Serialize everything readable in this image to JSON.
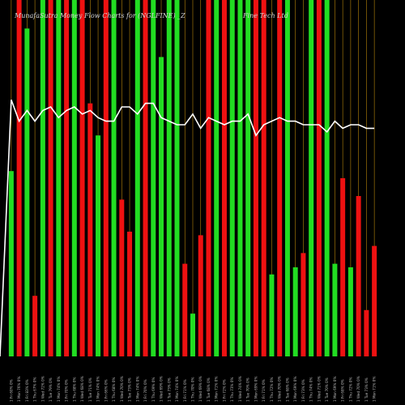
{
  "chart_data": {
    "type": "bar",
    "title": "MunafaSutra Money Flow Charts for (NGLFINE) _Z",
    "title_right": "Fine Tech Ltd",
    "colors": {
      "background": "#000000",
      "up": "#22dd22",
      "down": "#ee1111",
      "grid": "#b8860b",
      "line": "#ffffff"
    },
    "ylim": [
      0,
      100
    ],
    "bars": [
      {
        "value": 52,
        "color": "up"
      },
      {
        "value": 100,
        "color": "down"
      },
      {
        "value": 92,
        "color": "up"
      },
      {
        "value": 17,
        "color": "down"
      },
      {
        "value": 100,
        "color": "up"
      },
      {
        "value": 100,
        "color": "down"
      },
      {
        "value": 100,
        "color": "up"
      },
      {
        "value": 100,
        "color": "down"
      },
      {
        "value": 100,
        "color": "up"
      },
      {
        "value": 100,
        "color": "down"
      },
      {
        "value": 71,
        "color": "down"
      },
      {
        "value": 62,
        "color": "up"
      },
      {
        "value": 100,
        "color": "down"
      },
      {
        "value": 100,
        "color": "up"
      },
      {
        "value": 44,
        "color": "down"
      },
      {
        "value": 35,
        "color": "down"
      },
      {
        "value": 100,
        "color": "up"
      },
      {
        "value": 100,
        "color": "down"
      },
      {
        "value": 100,
        "color": "up"
      },
      {
        "value": 84,
        "color": "up"
      },
      {
        "value": 100,
        "color": "up"
      },
      {
        "value": 100,
        "color": "up"
      },
      {
        "value": 26,
        "color": "down"
      },
      {
        "value": 12,
        "color": "up"
      },
      {
        "value": 34,
        "color": "down"
      },
      {
        "value": 100,
        "color": "down"
      },
      {
        "value": 100,
        "color": "up"
      },
      {
        "value": 100,
        "color": "down"
      },
      {
        "value": 100,
        "color": "up"
      },
      {
        "value": 100,
        "color": "up"
      },
      {
        "value": 100,
        "color": "up"
      },
      {
        "value": 100,
        "color": "down"
      },
      {
        "value": 100,
        "color": "down"
      },
      {
        "value": 23,
        "color": "up"
      },
      {
        "value": 100,
        "color": "down"
      },
      {
        "value": 100,
        "color": "up"
      },
      {
        "value": 25,
        "color": "up"
      },
      {
        "value": 29,
        "color": "down"
      },
      {
        "value": 100,
        "color": "up"
      },
      {
        "value": 100,
        "color": "down"
      },
      {
        "value": 100,
        "color": "up"
      },
      {
        "value": 26,
        "color": "up"
      },
      {
        "value": 50,
        "color": "down"
      },
      {
        "value": 25,
        "color": "up"
      },
      {
        "value": 45,
        "color": "down"
      },
      {
        "value": 13,
        "color": "down"
      },
      {
        "value": 31,
        "color": "down"
      }
    ],
    "line": [
      72,
      66,
      69,
      66,
      69,
      70,
      67,
      69,
      70,
      68,
      69,
      67,
      66,
      66,
      70,
      70,
      68,
      71,
      71,
      67,
      66,
      65,
      65,
      68,
      64,
      67,
      66,
      65,
      66,
      66,
      68,
      62,
      65,
      66,
      67,
      66,
      66,
      65,
      65,
      65,
      63,
      66,
      64,
      65,
      65,
      64,
      64
    ],
    "xlabels": [
      "1 Fri 60% 0%",
      "1 Mon 76% 0%",
      "1 Fri 83% 0%",
      "1 Thu 67% 0%",
      "1 Wed 72% 0%",
      "1 Tue 79% 0%",
      "1 Mon 74% 0%",
      "1 Fri 70% 0%",
      "1 Thu 68% 0%",
      "1 Wed 68% 0%",
      "1 Tue 71% 0%",
      "1 Mon 74% 0%",
      "1 Fri 66% 0%",
      "1 Thu 68% 0%",
      "1 Wed 70% 0%",
      "1 Tue 73% 0%",
      "1 Mon 74% 0%",
      "1 Fri 70% 0%",
      "1 Thu 69% 0%",
      "1 Wed 69% 0%",
      "1 Tue 73% 0%",
      "1 Mon 74% 0%",
      "1 Fri 71% 0%",
      "1 Thu 70% 0%",
      "1 Wed 69% 0%",
      "1 Tue 68% 0%",
      "1 Mon 71% 0%",
      "1 Fri 72% 0%",
      "1 Thu 73% 0%",
      "1 Wed 74% 0%",
      "1 Tue 70% 0%",
      "1 Mon 69% 0%",
      "1 Fri 71% 0%",
      "1 Thu 72% 0%",
      "1 Wed 70% 0%",
      "1 Tue 68% 0%",
      "1 Mon 69% 0%",
      "1 Fri 73% 0%",
      "1 Thu 74% 0%",
      "1 Wed 71% 0%",
      "1 Tue 70% 0%",
      "1 Mon 69% 0%",
      "1 Fri 68% 0%",
      "1 Thu 72% 0%",
      "1 Wed 70% 0%",
      "1 Tue 73% 0%",
      "1 Mon 71% 0%"
    ]
  }
}
